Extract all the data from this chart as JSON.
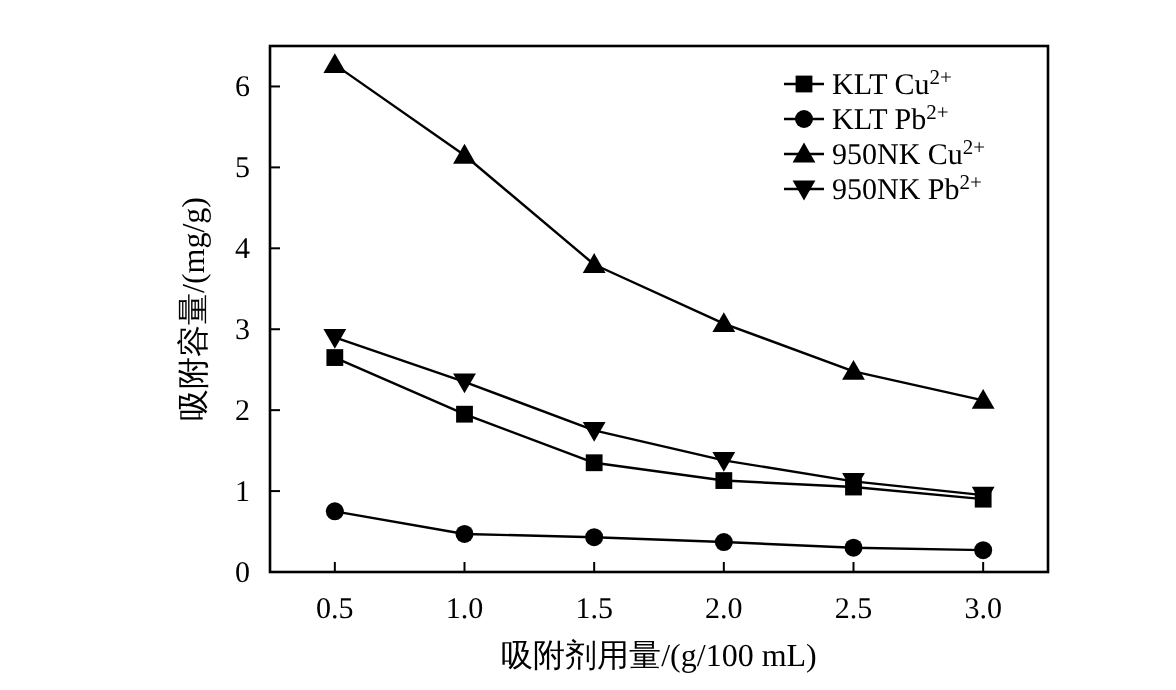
{
  "chart_data": {
    "type": "line",
    "xlabel": "吸附剂用量/(g/100 mL)",
    "ylabel": "吸附容量/(mg/g)",
    "x": [
      0.5,
      1.0,
      1.5,
      2.0,
      2.5,
      3.0
    ],
    "xlim": [
      0.25,
      3.25
    ],
    "xticks": [
      {
        "value": 0.5,
        "label": "0.5"
      },
      {
        "value": 1.0,
        "label": "1.0"
      },
      {
        "value": 1.5,
        "label": "1.5"
      },
      {
        "value": 2.0,
        "label": "2.0"
      },
      {
        "value": 2.5,
        "label": "2.5"
      },
      {
        "value": 3.0,
        "label": "3.0"
      }
    ],
    "ylim": [
      0,
      6.5
    ],
    "yticks": [
      0,
      1,
      2,
      3,
      4,
      5,
      6
    ],
    "grid": false,
    "legend": "top right",
    "line_style": "solid",
    "series": [
      {
        "name": "KLT Cu$^{2+}$",
        "color": "#000000",
        "marker": "square",
        "values": [
          2.65,
          1.95,
          1.35,
          1.13,
          1.05,
          0.9
        ]
      },
      {
        "name": "KLT Pb$^{2+}$",
        "color": "#000000",
        "marker": "circle",
        "values": [
          0.75,
          0.47,
          0.43,
          0.37,
          0.3,
          0.27
        ]
      },
      {
        "name": "950NK Cu$^{2+}$",
        "color": "#000000",
        "marker": "triangle",
        "values": [
          6.27,
          5.15,
          3.8,
          3.07,
          2.48,
          2.12
        ]
      },
      {
        "name": "950NK Pb$^{2+}$",
        "color": "#000000",
        "marker": "triangle-down",
        "values": [
          2.9,
          2.35,
          1.75,
          1.38,
          1.12,
          0.95
        ]
      }
    ]
  }
}
